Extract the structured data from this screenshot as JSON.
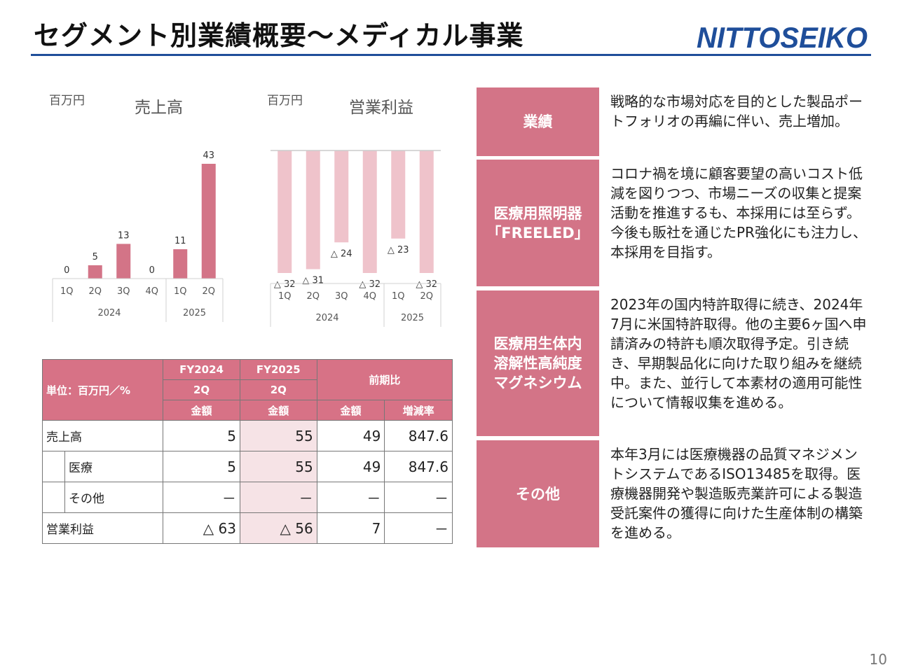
{
  "header": {
    "title": "セグメント別業績概要～メディカル事業",
    "logo_text": "NITTOSEIKO",
    "page_number": "10"
  },
  "colors": {
    "accent_pink": "#d37487",
    "light_pink": "#eebfc8",
    "blue_rule": "#1f4e9a"
  },
  "sales_chart": {
    "unit": "百万円",
    "title": "売上高",
    "groups": [
      "2024",
      "2025"
    ]
  },
  "profit_chart": {
    "unit": "百万円",
    "title": "営業利益",
    "groups": [
      "2024",
      "2025"
    ]
  },
  "chart_data": [
    {
      "type": "bar",
      "title": "売上高",
      "unit": "百万円",
      "categories": [
        "1Q",
        "2Q",
        "3Q",
        "4Q",
        "1Q",
        "2Q"
      ],
      "groups": [
        {
          "label": "2024",
          "span": 4
        },
        {
          "label": "2025",
          "span": 2
        }
      ],
      "values": [
        0,
        5,
        13,
        0,
        11,
        43
      ],
      "value_labels": [
        "0",
        "5",
        "13",
        "0",
        "11",
        "43"
      ]
    },
    {
      "type": "bar",
      "title": "営業利益",
      "unit": "百万円",
      "categories": [
        "1Q",
        "2Q",
        "3Q",
        "4Q",
        "1Q",
        "2Q"
      ],
      "groups": [
        {
          "label": "2024",
          "span": 4
        },
        {
          "label": "2025",
          "span": 2
        }
      ],
      "values": [
        -32,
        -31,
        -24,
        -32,
        -23,
        -32
      ],
      "value_labels": [
        "△ 32",
        "△ 31",
        "△ 24",
        "△ 32",
        "△ 23",
        "△ 32"
      ]
    }
  ],
  "table": {
    "unit_header": "単位：百万円／%",
    "col_fy2024_line1": "FY2024",
    "col_fy2024_line2": "2Q",
    "col_fy2025_line1": "FY2025",
    "col_fy2025_line2": "2Q",
    "col_yoy": "前期比",
    "sub_amount": "金額",
    "sub_rate": "増減率",
    "rows": [
      {
        "label": "売上高",
        "fy2024": "5",
        "fy2025": "55",
        "diff": "49",
        "rate": "847.6"
      },
      {
        "label": "医療",
        "fy2024": "5",
        "fy2025": "55",
        "diff": "49",
        "rate": "847.6"
      },
      {
        "label": "その他",
        "fy2024": "－",
        "fy2025": "－",
        "diff": "－",
        "rate": "－"
      },
      {
        "label": "営業利益",
        "fy2024": "△ 63",
        "fy2025": "△ 56",
        "diff": "7",
        "rate": "－"
      }
    ]
  },
  "sections": [
    {
      "label_lines": [
        "業績"
      ],
      "text": "戦略的な市場対応を目的とした製品ポートフォリオの再編に伴い、売上増加。"
    },
    {
      "label_lines": [
        "医療用照明器",
        "「FREELED」"
      ],
      "text": "コロナ禍を境に顧客要望の高いコスト低減を図りつつ、市場ニーズの収集と提案活動を推進するも、本採用には至らず。今後も販社を通じたPR強化にも注力し、本採用を目指す。"
    },
    {
      "label_lines": [
        "医療用生体内",
        "溶解性高純度",
        "マグネシウム"
      ],
      "text": "2023年の国内特許取得に続き、2024年7月に米国特許取得。他の主要6ヶ国へ申請済みの特許も順次取得予定。引き続き、早期製品化に向けた取り組みを継続中。また、並行して本素材の適用可能性について情報収集を進める。"
    },
    {
      "label_lines": [
        "その他"
      ],
      "text": "本年3月には医療機器の品質マネジメントシステムであるISO13485を取得。医療機器開発や製造販売業許可による製造受託案件の獲得に向けた生産体制の構築を進める。"
    }
  ]
}
